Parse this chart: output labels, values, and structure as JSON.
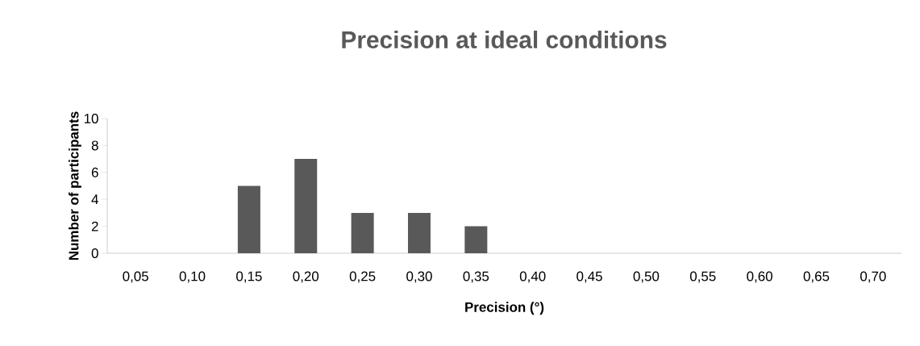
{
  "chart_data": {
    "type": "bar",
    "title": "Precision at ideal conditions",
    "xlabel": "Precision (°)",
    "ylabel": "Number of participants",
    "categories": [
      "0,05",
      "0,10",
      "0,15",
      "0,20",
      "0,25",
      "0,30",
      "0,35",
      "0,40",
      "0,45",
      "0,50",
      "0,55",
      "0,60",
      "0,65",
      "0,70"
    ],
    "values": [
      0,
      0,
      5,
      7,
      3,
      3,
      2,
      0,
      0,
      0,
      0,
      0,
      0,
      0
    ],
    "color": "#595959",
    "ylim": [
      0,
      10
    ],
    "yticks": [
      0,
      2,
      4,
      6,
      8,
      10
    ],
    "grid": false
  }
}
